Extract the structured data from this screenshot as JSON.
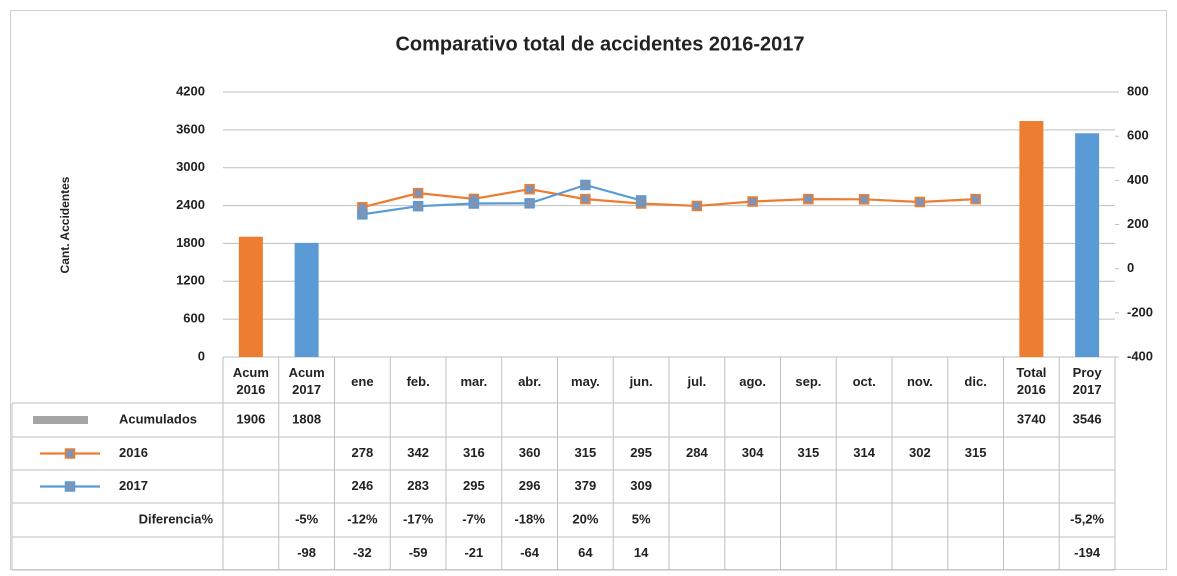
{
  "chart_data": {
    "type": "bar",
    "title": "Comparativo total de accidentes 2016-2017",
    "y_label": "Cant. Accidentes",
    "categories": [
      "Acum 2016",
      "Acum 2017",
      "ene",
      "feb.",
      "mar.",
      "abr.",
      "may.",
      "jun.",
      "jul.",
      "ago.",
      "sep.",
      "oct.",
      "nov.",
      "dic.",
      "Total 2016",
      "Proy 2017"
    ],
    "series": [
      {
        "name": "Acumulados",
        "type": "bar",
        "color": "#a5a5a5",
        "point_colors": [
          "#ed7d31",
          "#5b9bd5",
          null,
          null,
          null,
          null,
          null,
          null,
          null,
          null,
          null,
          null,
          null,
          null,
          "#ed7d31",
          "#5b9bd5"
        ],
        "values": [
          1906,
          1808,
          null,
          null,
          null,
          null,
          null,
          null,
          null,
          null,
          null,
          null,
          null,
          null,
          3740,
          3546
        ]
      },
      {
        "name": "2016",
        "type": "line",
        "axis": "y2",
        "color": "#ed7d31",
        "marker_color": "#7f93b4",
        "values": [
          null,
          null,
          278,
          342,
          316,
          360,
          315,
          295,
          284,
          304,
          315,
          314,
          302,
          315,
          null,
          null
        ]
      },
      {
        "name": "2017",
        "type": "line",
        "axis": "y2",
        "color": "#5b9bd5",
        "marker_color": "#7f93b4",
        "values": [
          null,
          null,
          246,
          283,
          295,
          296,
          379,
          309,
          null,
          null,
          null,
          null,
          null,
          null,
          null,
          null
        ]
      }
    ],
    "table_rows": [
      {
        "name": "Diferencia%",
        "values": [
          null,
          "-5%",
          "-12%",
          "-17%",
          "-7%",
          "-18%",
          "20%",
          "5%",
          null,
          null,
          null,
          null,
          null,
          null,
          null,
          "-5,2%"
        ]
      },
      {
        "values": [
          null,
          -98,
          -32,
          -59,
          -21,
          -64,
          64,
          14,
          null,
          null,
          null,
          null,
          null,
          null,
          null,
          -194
        ]
      }
    ],
    "ylim": [
      0,
      4200
    ],
    "yticks": [
      0,
      600,
      1200,
      1800,
      2400,
      3000,
      3600,
      4200
    ],
    "y2lim": [
      -400,
      800
    ],
    "y2ticks": [
      -400,
      -200,
      0,
      200,
      400,
      600,
      800
    ],
    "grid": true
  }
}
